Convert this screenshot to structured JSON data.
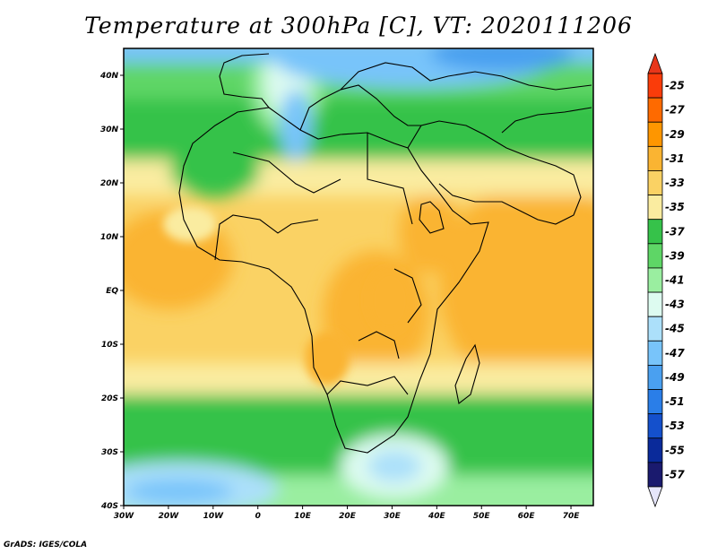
{
  "title": "Temperature at 300hPa [C], VT: 2020111206",
  "footer": "GrADS: IGES/COLA",
  "map": {
    "x_ticks": [
      "30W",
      "20W",
      "10W",
      "0",
      "10E",
      "20E",
      "30E",
      "40E",
      "50E",
      "60E",
      "70E"
    ],
    "y_ticks": [
      "40N",
      "30N",
      "20N",
      "10N",
      "EQ",
      "10S",
      "20S",
      "30S",
      "40S"
    ],
    "lon_range": [
      -30,
      75
    ],
    "lat_range": [
      -40,
      45
    ]
  },
  "colorbar": {
    "labels": [
      "-25",
      "-27",
      "-29",
      "-31",
      "-33",
      "-35",
      "-37",
      "-39",
      "-41",
      "-43",
      "-45",
      "-47",
      "-49",
      "-51",
      "-53",
      "-55",
      "-57"
    ],
    "colors": [
      "#fa3c0a",
      "#fe6a00",
      "#fe9600",
      "#fab432",
      "#fad264",
      "#faeca0",
      "#36c24a",
      "#5ed666",
      "#9aeea0",
      "#ddfbf0",
      "#ace0fa",
      "#78c4fa",
      "#4aa0f0",
      "#2a7ee8",
      "#1450cc",
      "#0a2a9a",
      "#1a1a6e"
    ],
    "top_arrow_color": "#e8361a",
    "bottom_arrow_color": "#e6e6fa"
  },
  "icons": [
    "land-outline-icon"
  ]
}
